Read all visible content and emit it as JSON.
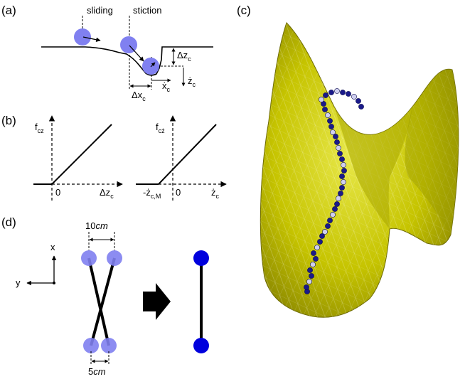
{
  "panels": {
    "a": {
      "label": "(a)",
      "sliding": "sliding",
      "stiction": "stiction",
      "dz": "Δz",
      "dz_sub": "c",
      "zdot": "ż",
      "zdot_sub": "c",
      "xdot": "ẋ",
      "xdot_sub": "c",
      "dx": "Δx",
      "dx_sub": "c"
    },
    "b": {
      "label": "(b)",
      "left": {
        "ylabel": "f",
        "ylabel_sub": "cz",
        "zero": "0",
        "xlabel": "Δz",
        "xlabel_sub": "c"
      },
      "right": {
        "ylabel": "f",
        "ylabel_sub": "cż",
        "neg": "-ż",
        "neg_sub": "c,M",
        "zero": "0",
        "xlabel": "ż",
        "xlabel_sub": "c"
      }
    },
    "c": {
      "label": "(c)"
    },
    "d": {
      "label": "(d)",
      "x_axis": "x",
      "y_axis": "y",
      "top_dim_num": "10",
      "top_dim_unit": "cm",
      "bottom_dim_num": "5",
      "bottom_dim_unit": "cm"
    }
  },
  "colors": {
    "ball_light": "#8080f0",
    "ball_dark": "#0000dd",
    "surface": "#c8c800",
    "surface_dark": "#8a8a00",
    "path_ball": "#1a1a8a",
    "path_ball_light": "#d0d0f0"
  }
}
